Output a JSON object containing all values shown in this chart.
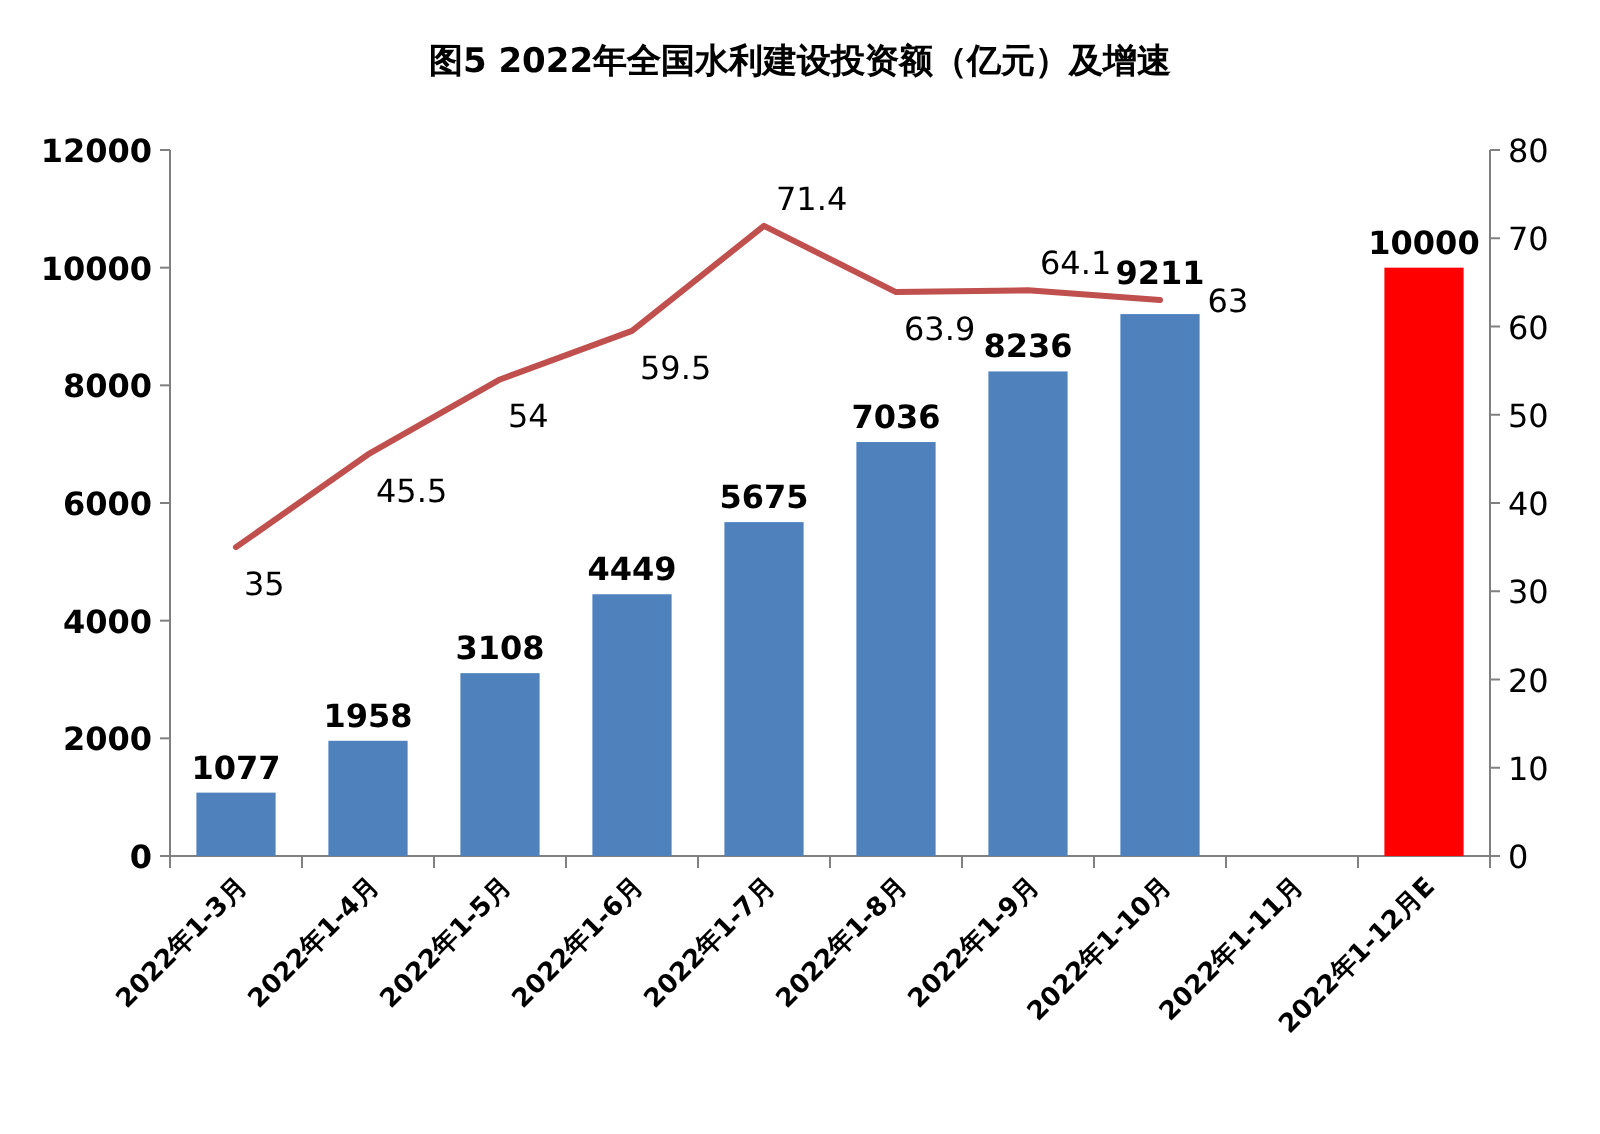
{
  "chart_data": {
    "type": "bar",
    "title": "图5 2022年全国水利建设投资额（亿元）及增速",
    "categories": [
      "2022年1-3月",
      "2022年1-4月",
      "2022年1-5月",
      "2022年1-6月",
      "2022年1-7月",
      "2022年1-8月",
      "2022年1-9月",
      "2022年1-10月",
      "2022年1-11月",
      "2022年1-12月E"
    ],
    "series": [
      {
        "colors": [
          "#4f81bd",
          "#4f81bd",
          "#4f81bd",
          "#4f81bd",
          "#4f81bd",
          "#4f81bd",
          "#4f81bd",
          "#4f81bd",
          "#4f81bd",
          "#ff0000"
        ],
        "values": [
          1077,
          1958,
          3108,
          4449,
          5675,
          7036,
          8236,
          9211,
          null,
          10000
        ]
      },
      {
        "type": "line",
        "axis": "y2",
        "color": "#c0504d",
        "values": [
          35,
          45.5,
          54,
          59.5,
          71.4,
          63.9,
          64.1,
          63,
          null,
          null
        ]
      }
    ],
    "data_labels": true,
    "ylim": [
      0,
      12000
    ],
    "yticks": [
      0,
      2000,
      4000,
      6000,
      8000,
      10000,
      12000
    ],
    "y2lim": [
      0,
      80
    ],
    "y2ticks": [
      0,
      10,
      20,
      30,
      40,
      50,
      60,
      70,
      80
    ]
  }
}
